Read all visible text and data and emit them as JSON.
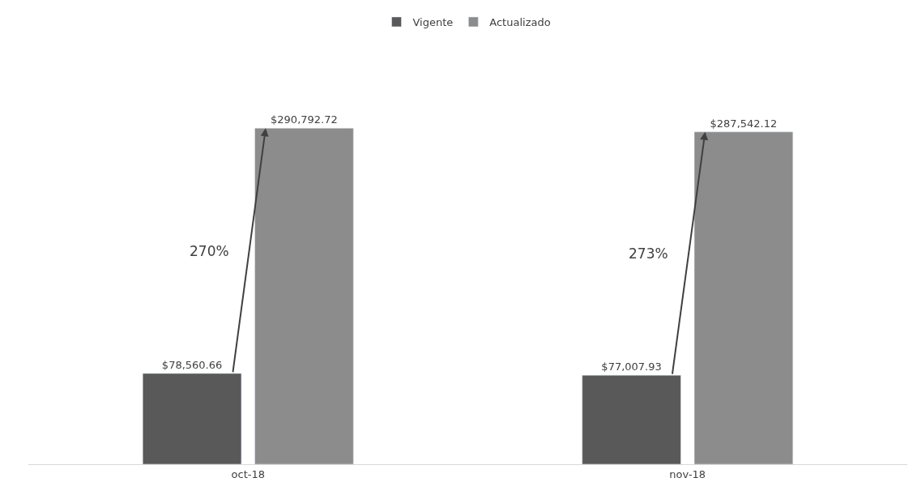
{
  "chart_data": {
    "type": "bar",
    "categories": [
      "oct-18",
      "nov-18"
    ],
    "series": [
      {
        "name": "Vigente",
        "color": "#595959",
        "values": [
          78560.66,
          77007.93
        ],
        "value_labels": [
          "$78,560.66",
          "$77,007.93"
        ]
      },
      {
        "name": "Actualizado",
        "color": "#8c8c8c",
        "values": [
          290792.72,
          287542.12
        ],
        "value_labels": [
          "$290,792.72",
          "$287,542.12"
        ]
      }
    ],
    "annotations": [
      "270%",
      "273%"
    ],
    "legend": "top",
    "grid": false
  }
}
